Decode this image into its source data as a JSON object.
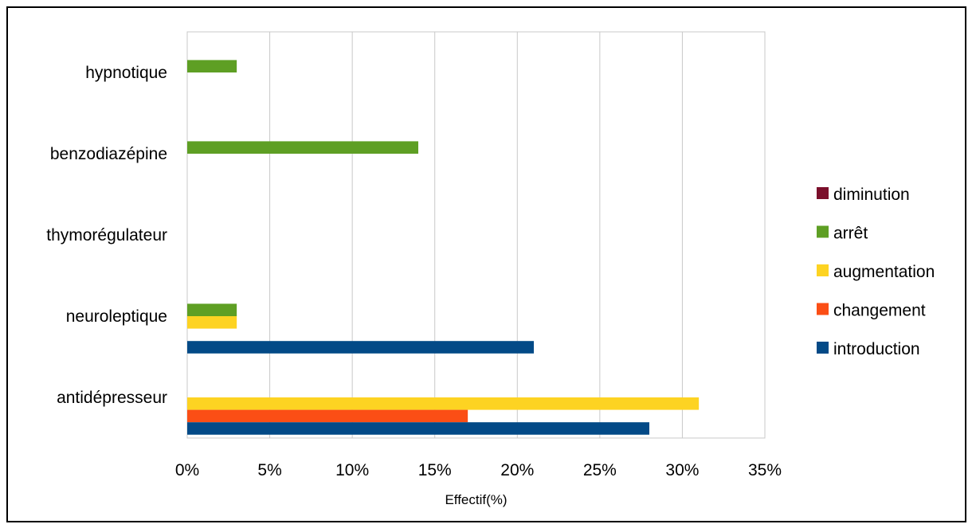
{
  "chart_data": {
    "type": "bar",
    "orientation": "horizontal",
    "categories": [
      "hypnotique",
      "benzodiazépine",
      "thymorégulateur",
      "neuroleptique",
      "antidépresseur"
    ],
    "series": [
      {
        "name": "diminution",
        "color": "#7b0f2b",
        "values": [
          0,
          0,
          0,
          0,
          0
        ]
      },
      {
        "name": "arrêt",
        "color": "#5e9f24",
        "values": [
          3,
          14,
          0,
          3,
          0
        ]
      },
      {
        "name": "augmentation",
        "color": "#fdd322",
        "values": [
          0,
          0,
          0,
          3,
          31
        ]
      },
      {
        "name": "changement",
        "color": "#fb4e15",
        "values": [
          0,
          0,
          0,
          0,
          17
        ]
      },
      {
        "name": "introduction",
        "color": "#034a87",
        "values": [
          0,
          0,
          0,
          21,
          28
        ]
      }
    ],
    "x_ticks": [
      "0%",
      "5%",
      "10%",
      "15%",
      "20%",
      "25%",
      "30%",
      "35%"
    ],
    "xlim": [
      0,
      35
    ],
    "xlabel": "Effectif(%)",
    "title": "",
    "grid": "vertical",
    "legend": "right"
  }
}
